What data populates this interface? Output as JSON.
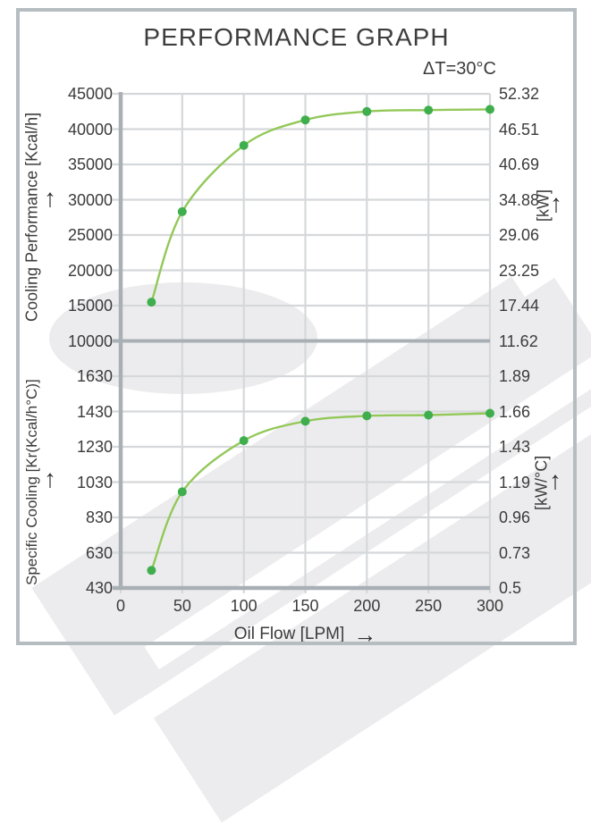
{
  "title": "PERFORMANCE GRAPH",
  "annotation": "ΔT=30°C",
  "icons": {
    "up_arrow": "↑",
    "right_arrow": "→"
  },
  "colors": {
    "line": "#93c859",
    "marker": "#3fae4d",
    "grid_light": "#d5d8da",
    "axis_dark": "#a9b0b5",
    "text": "#3b3b3b",
    "frame_border": "#b5bdc1",
    "watermark": "#ececee"
  },
  "x_axis": {
    "label": "Oil Flow [LPM]",
    "ticks": [
      0,
      50,
      100,
      150,
      200,
      250,
      300
    ],
    "range": [
      0,
      300
    ]
  },
  "chart_data": [
    {
      "type": "line",
      "title": "Cooling Performance vs Oil Flow",
      "x": [
        25,
        50,
        100,
        150,
        200,
        250,
        300
      ],
      "series": [
        {
          "name": "Cooling Performance",
          "values": [
            15500,
            28300,
            37700,
            41300,
            42500,
            42700,
            42800
          ]
        }
      ],
      "xlabel": "Oil Flow [LPM]",
      "grid": true,
      "legend": "none",
      "y_axis_left": {
        "label": "Cooling Performance [Kcal/h]",
        "ticks": [
          45000,
          40000,
          35000,
          30000,
          25000,
          20000,
          15000,
          10000
        ],
        "range": [
          10000,
          45000
        ]
      },
      "y_axis_right": {
        "label": "[kW]",
        "ticks": [
          "52.32",
          "46.51",
          "40.69",
          "34.88",
          "29.06",
          "23.25",
          "17.44",
          "11.62"
        ],
        "range": [
          11.62,
          52.32
        ]
      }
    },
    {
      "type": "line",
      "title": "Specific Cooling vs Oil Flow",
      "x": [
        25,
        50,
        100,
        150,
        200,
        250,
        300
      ],
      "series": [
        {
          "name": "Specific Cooling",
          "values": [
            530,
            975,
            1265,
            1375,
            1405,
            1410,
            1420
          ]
        }
      ],
      "xlabel": "Oil Flow [LPM]",
      "grid": true,
      "legend": "none",
      "y_axis_left": {
        "label": "Specific Cooling [Kr(Kcal/h°C)]",
        "ticks": [
          1630,
          1430,
          1230,
          1030,
          830,
          630,
          430
        ],
        "range": [
          430,
          1630
        ]
      },
      "y_axis_right": {
        "label": "[kW/°C]",
        "ticks": [
          "1.89",
          "1.66",
          "1.43",
          "1.19",
          "0.96",
          "0.73",
          "0.5"
        ],
        "range": [
          0.5,
          1.89
        ]
      }
    }
  ]
}
